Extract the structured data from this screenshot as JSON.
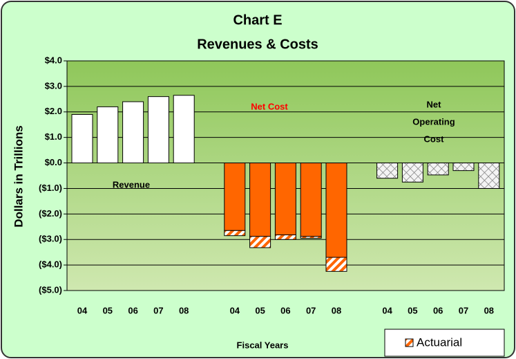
{
  "chart_data": {
    "type": "bar",
    "title": "Chart E",
    "subtitle": "Revenues & Costs",
    "ylabel": "Dollars in Trillions",
    "xlabel": "Fiscal Years",
    "ylim": [
      -5,
      4
    ],
    "yticks": [
      {
        "value": 4,
        "label": "$4.0"
      },
      {
        "value": 3,
        "label": "$3.0"
      },
      {
        "value": 2,
        "label": "$2.0"
      },
      {
        "value": 1,
        "label": "$1.0"
      },
      {
        "value": 0,
        "label": "$0.0"
      },
      {
        "value": -1,
        "label": "($1.0)"
      },
      {
        "value": -2,
        "label": "($2.0)"
      },
      {
        "value": -3,
        "label": "($3.0)"
      },
      {
        "value": -4,
        "label": "($4.0)"
      },
      {
        "value": -5,
        "label": "($5.0)"
      }
    ],
    "grid": true,
    "legend": "bottom-right",
    "groups": [
      {
        "label": [
          "Revenue"
        ],
        "label_color": "#000000",
        "categories": [
          "04",
          "05",
          "06",
          "07",
          "08"
        ],
        "series": [
          {
            "color": "#ffffff",
            "pattern": "solid",
            "values": [
              1.9,
              2.2,
              2.4,
              2.6,
              2.65
            ]
          }
        ]
      },
      {
        "label": [
          "Net Cost"
        ],
        "label_color": "#ff0000",
        "categories": [
          "04",
          "05",
          "06",
          "07",
          "08"
        ],
        "series": [
          {
            "color": "#ff6600",
            "pattern": "solid",
            "values": [
              -2.65,
              -2.88,
              -2.82,
              -2.88,
              -3.7
            ]
          },
          {
            "name": "Actuarial",
            "color": "#ff6600",
            "pattern": "hatch",
            "values": [
              -0.2,
              -0.44,
              -0.18,
              -0.07,
              -0.55
            ]
          }
        ]
      },
      {
        "label": [
          "Net",
          "Operating",
          "Cost"
        ],
        "label_color": "#000000",
        "categories": [
          "04",
          "05",
          "06",
          "07",
          "08"
        ],
        "series": [
          {
            "color": "#808080",
            "pattern": "crosshatch",
            "values": [
              -0.6,
              -0.75,
              -0.47,
              -0.3,
              -1.0
            ]
          }
        ]
      }
    ]
  }
}
